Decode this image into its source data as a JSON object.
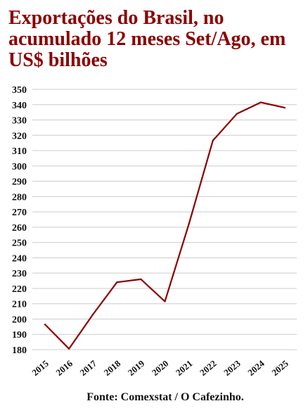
{
  "chart_data": {
    "type": "line",
    "title": "Exportações do Brasil, no acumulado 12 meses Set/Ago, em US$ bilhões",
    "x": [
      "2015",
      "2016",
      "2017",
      "2018",
      "2019",
      "2020",
      "2021",
      "2022",
      "2023",
      "2024",
      "2025"
    ],
    "series": [
      {
        "values": [
          196.5,
          180.6,
          203,
          224,
          226,
          211.5,
          262,
          316.5,
          334,
          341.5,
          338
        ]
      }
    ],
    "yticks": [
      180,
      190,
      200,
      210,
      220,
      230,
      240,
      250,
      260,
      270,
      280,
      290,
      300,
      310,
      320,
      330,
      340,
      350
    ],
    "ylim": [
      180,
      350
    ],
    "grid": true,
    "line_color": "#8b0000",
    "source": "Fonte: Comexstat / O Cafezinho."
  }
}
